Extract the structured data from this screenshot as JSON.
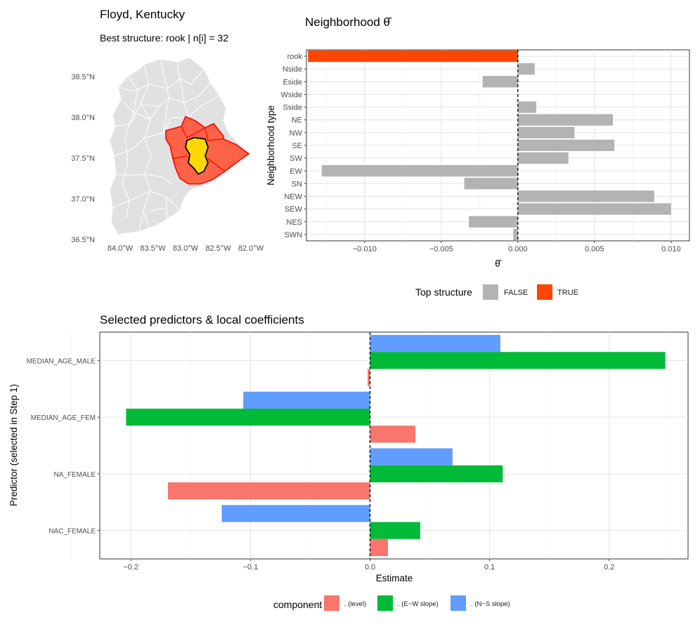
{
  "map": {
    "title": "Floyd, Kentucky",
    "subtitle": "Best structure: rook   |   n[i] = 32",
    "lat_labels": [
      "38.5°N",
      "38.0°N",
      "37.5°N",
      "37.0°N",
      "36.5°N"
    ],
    "lon_labels": [
      "84.0°W",
      "83.5°W",
      "83.0°W",
      "82.5°W",
      "82.0°W"
    ],
    "colors": {
      "county": "#e1e1e1",
      "neighbor": "#ff6347",
      "focal": "#ffd700",
      "border": "#ffffff",
      "neighbor_border": "#ff0000"
    }
  },
  "chart_data": [
    {
      "type": "bar",
      "orientation": "horizontal",
      "title": "Neighborhood θ̂",
      "xlabel": "θ̂",
      "ylabel": "Neighborhood type",
      "xlim": [
        -0.0138,
        0.0112
      ],
      "x_ticks": [
        -0.01,
        -0.005,
        0.0,
        0.005,
        0.01
      ],
      "x_tick_labels": [
        "−0.010",
        "−0.005",
        "0.000",
        "0.005",
        "0.010"
      ],
      "categories": [
        "rook",
        "Nside",
        "Eside",
        "Wside",
        "Sside",
        "NE",
        "NW",
        "SE",
        "SW",
        "EW",
        "SN",
        "NEW",
        "SEW",
        "NES",
        "SWN"
      ],
      "values": [
        -0.0137,
        0.0011,
        -0.0023,
        0.0,
        0.0012,
        0.0062,
        0.0037,
        0.0063,
        0.0033,
        -0.0128,
        -0.0035,
        0.0089,
        0.01,
        -0.0032,
        -0.0003
      ],
      "top_structure": [
        true,
        false,
        false,
        false,
        false,
        false,
        false,
        false,
        false,
        false,
        false,
        false,
        false,
        false,
        false
      ],
      "legend": {
        "title": "Top structure",
        "position": "bottom",
        "entries": [
          {
            "label": "FALSE",
            "color": "#b3b3b3"
          },
          {
            "label": "TRUE",
            "color": "#ff4500"
          }
        ]
      },
      "grid": true
    },
    {
      "type": "bar",
      "orientation": "horizontal",
      "title": "Selected predictors & local coefficients",
      "xlabel": "Estimate",
      "ylabel": "Predictor (selected in Step 1)",
      "xlim": [
        -0.226,
        0.266
      ],
      "x_ticks": [
        -0.2,
        -0.1,
        0.0,
        0.1,
        0.2
      ],
      "x_tick_labels": [
        "−0.2",
        "−0.1",
        "0.0",
        "0.1",
        "0.2"
      ],
      "categories": [
        "MEDIAN_AGE_MALE",
        "MEDIAN_AGE_FEM",
        "NA_FEMALE",
        "NAC_FEMALE"
      ],
      "series": [
        {
          "name": ". (level)",
          "color": "#f8766d",
          "values": [
            -0.002,
            0.038,
            -0.169,
            0.015
          ]
        },
        {
          "name": ". (E−W slope)",
          "color": "#00ba38",
          "values": [
            0.247,
            -0.204,
            0.111,
            0.042
          ]
        },
        {
          "name": ". (N−S slope)",
          "color": "#619cff",
          "values": [
            0.109,
            -0.106,
            0.069,
            -0.124
          ]
        }
      ],
      "legend": {
        "title": "component",
        "position": "bottom"
      },
      "grid": true
    }
  ]
}
